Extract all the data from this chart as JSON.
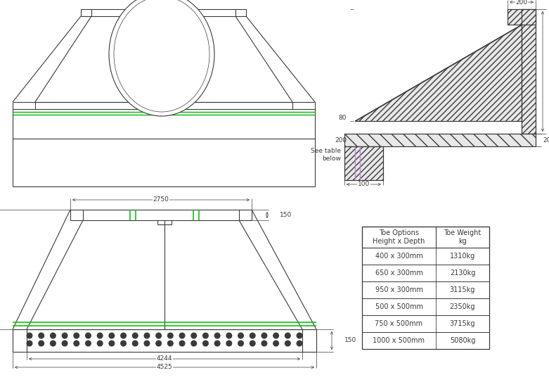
{
  "bg_color": "#ffffff",
  "line_color": "#3a3a3a",
  "green_color": "#00bb00",
  "purple_color": "#bb88cc",
  "font_size_dim": 6.5,
  "font_size_table": 7.0,
  "table_rows": [
    [
      "400 x 300mm",
      "1310kg"
    ],
    [
      "650 x 300mm",
      "2130kg"
    ],
    [
      "950 x 300mm",
      "3115kg"
    ],
    [
      "500 x 500mm",
      "2350kg"
    ],
    [
      "750 x 500mm",
      "3715kg"
    ],
    [
      "1000 x 500mm",
      "5080kg"
    ]
  ]
}
